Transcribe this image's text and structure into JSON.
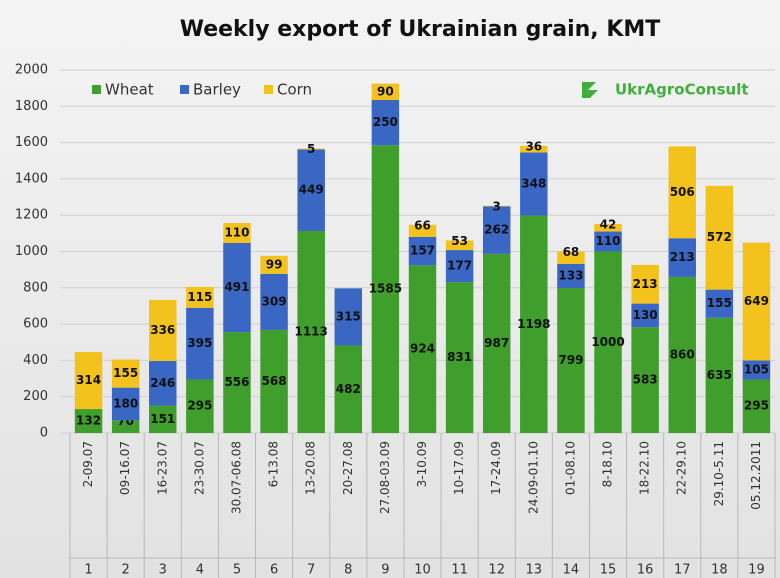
{
  "chart_data": {
    "type": "bar",
    "stacked": true,
    "title": "Weekly export of Ukrainian grain, KMT",
    "brand": "UkrAgroConsult",
    "categories": [
      "2-09.07",
      "09-16.07",
      "16-23.07",
      "23-30.07",
      "30.07-06.08",
      "6-13.08",
      "13-20.08",
      "20-27.08",
      "27.08-03.09",
      "3-10.09",
      "10-17.09",
      "17-24.09",
      "24.09-01.10",
      "01-08.10",
      "8-18.10",
      "18-22.10",
      "22-29.10",
      "29.10-5.11",
      "05.12.2011"
    ],
    "weeks": [
      1,
      2,
      3,
      4,
      5,
      6,
      7,
      8,
      9,
      10,
      11,
      12,
      13,
      14,
      15,
      16,
      17,
      18,
      19
    ],
    "series": [
      {
        "name": "Wheat",
        "color": "#3f9e2c",
        "values": [
          132,
          70,
          151,
          295,
          556,
          568,
          1113,
          482,
          1585,
          924,
          831,
          987,
          1198,
          799,
          1000,
          583,
          860,
          635,
          295
        ]
      },
      {
        "name": "Barley",
        "color": "#3a66c4",
        "values": [
          null,
          180,
          246,
          395,
          491,
          309,
          449,
          315,
          250,
          157,
          177,
          262,
          348,
          133,
          110,
          130,
          213,
          155,
          105
        ]
      },
      {
        "name": "Corn",
        "color": "#f4c21c",
        "values": [
          314,
          155,
          336,
          115,
          110,
          99,
          5,
          null,
          90,
          66,
          53,
          3,
          36,
          68,
          42,
          213,
          506,
          572,
          649
        ]
      }
    ],
    "ylim": [
      0,
      2000
    ],
    "yticks": [
      0,
      200,
      400,
      600,
      800,
      1000,
      1200,
      1400,
      1600,
      1800,
      2000
    ],
    "grid": true
  }
}
